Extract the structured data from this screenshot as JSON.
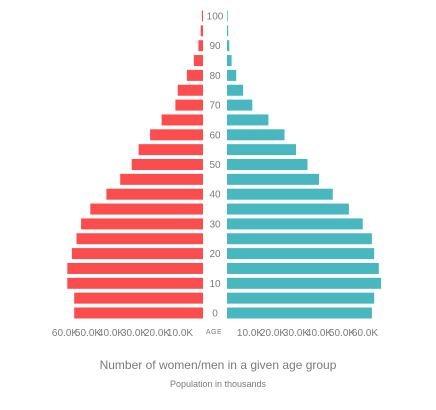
{
  "chart_data": {
    "type": "bar",
    "orientation": "horizontal-population-pyramid",
    "center_label": "AGE",
    "categories": [
      "0",
      "5",
      "10",
      "15",
      "20",
      "25",
      "30",
      "35",
      "40",
      "45",
      "50",
      "55",
      "60",
      "65",
      "70",
      "75",
      "80",
      "85",
      "90",
      "95",
      "100"
    ],
    "age_tick_labels": [
      "0",
      "10",
      "20",
      "30",
      "40",
      "50",
      "60",
      "70",
      "80",
      "90",
      "100"
    ],
    "series": [
      {
        "side": "left",
        "color": "#fb4d4e",
        "values": [
          56000,
          56000,
          59000,
          59000,
          57000,
          55000,
          53000,
          49000,
          42000,
          36000,
          31000,
          28000,
          23000,
          18000,
          12000,
          11000,
          7000,
          4000,
          2000,
          1000,
          500
        ]
      },
      {
        "side": "right",
        "color": "#48b7c0",
        "values": [
          63000,
          64000,
          67000,
          66000,
          64000,
          63000,
          59000,
          53000,
          46000,
          40000,
          35000,
          30000,
          25000,
          18000,
          11000,
          7000,
          4000,
          2000,
          1000,
          500,
          300
        ]
      }
    ],
    "xlim": [
      0,
      65000
    ],
    "left_tick_labels": [
      "60.0K",
      "50.0K",
      "40.0K",
      "30.0K",
      "20.0K",
      "10.0K"
    ],
    "right_tick_labels": [
      "10.0K",
      "20.0K",
      "30.0K",
      "40.0K",
      "50.0K",
      "60.0K"
    ],
    "tick_values": [
      60000,
      50000,
      40000,
      30000,
      20000,
      10000
    ],
    "title": "Number of women/men in a given age group",
    "subtitle": "Population in thousands",
    "grid": false,
    "legend": "none"
  }
}
